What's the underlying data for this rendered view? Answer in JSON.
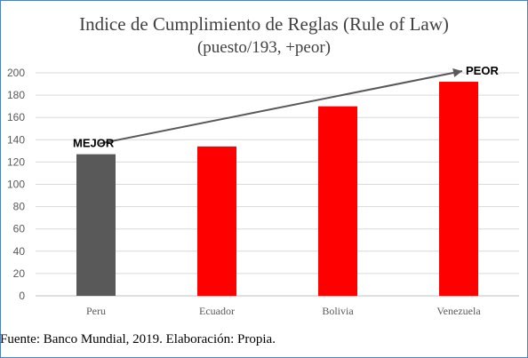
{
  "chart_data": {
    "type": "bar",
    "title": "Indice de Cumplimiento de Reglas (Rule of Law)",
    "subtitle": "(puesto/193, +peor)",
    "categories": [
      "Peru",
      "Ecuador",
      "Bolivia",
      "Venezuela"
    ],
    "values": [
      127,
      134,
      170,
      192
    ],
    "bar_colors": [
      "#595959",
      "#ff0000",
      "#ff0000",
      "#ff0000"
    ],
    "ylim": [
      0,
      200
    ],
    "yticks": [
      "0",
      "20",
      "40",
      "60",
      "80",
      "100",
      "120",
      "140",
      "160",
      "180",
      "200"
    ],
    "grid": true,
    "annotations": {
      "start_label": "MEJOR",
      "end_label": "PEOR",
      "arrow_color": "#595959"
    }
  },
  "source": "Fuente: Banco Mundial, 2019. Elaboración: Propia."
}
